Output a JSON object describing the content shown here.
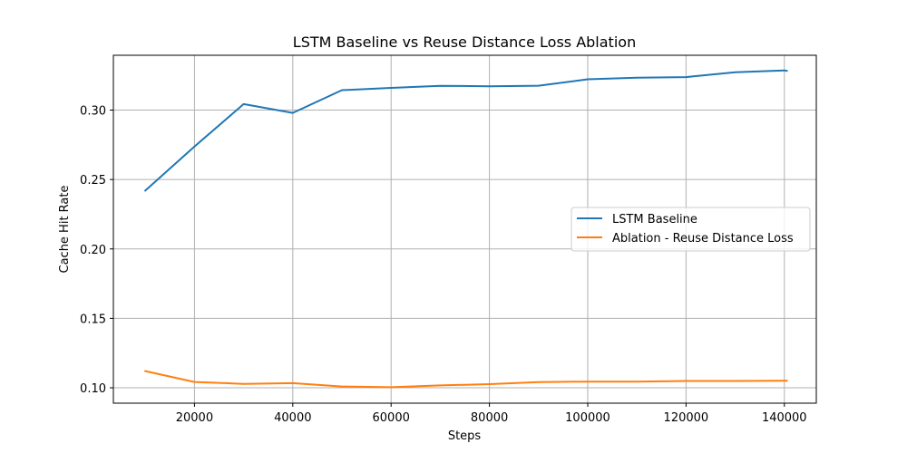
{
  "chart_data": {
    "type": "line",
    "title": "LSTM Baseline vs Reuse Distance Loss Ablation",
    "xlabel": "Steps",
    "ylabel": "Cache Hit Rate",
    "xlim": [
      3500,
      146500
    ],
    "ylim": [
      0.0889,
      0.3395
    ],
    "xticks": [
      20000,
      40000,
      60000,
      80000,
      100000,
      120000,
      140000
    ],
    "xtick_labels": [
      "20000",
      "40000",
      "60000",
      "80000",
      "100000",
      "120000",
      "140000"
    ],
    "yticks": [
      0.1,
      0.15,
      0.2,
      0.25,
      0.3
    ],
    "ytick_labels": [
      "0.10",
      "0.15",
      "0.20",
      "0.25",
      "0.30"
    ],
    "grid": true,
    "legend_position": "center-right",
    "series": [
      {
        "name": "LSTM Baseline",
        "color": "#1f77b4",
        "x": [
          10000,
          20000,
          30000,
          40000,
          50000,
          60000,
          70000,
          80000,
          90000,
          100000,
          110000,
          120000,
          130000,
          140000,
          140500
        ],
        "y": [
          0.242,
          0.2737,
          0.3043,
          0.298,
          0.3144,
          0.316,
          0.3175,
          0.3172,
          0.3176,
          0.3222,
          0.3233,
          0.3238,
          0.3273,
          0.3286,
          0.3283
        ]
      },
      {
        "name": "Ablation - Reuse Distance Loss",
        "color": "#ff7f0e",
        "x": [
          10000,
          20000,
          30000,
          40000,
          50000,
          60000,
          70000,
          80000,
          90000,
          100000,
          110000,
          120000,
          130000,
          140000,
          140500
        ],
        "y": [
          0.112,
          0.1042,
          0.1028,
          0.1033,
          0.1009,
          0.1004,
          0.1017,
          0.1026,
          0.1041,
          0.1044,
          0.1044,
          0.1049,
          0.1049,
          0.1051,
          0.1051
        ]
      }
    ]
  }
}
